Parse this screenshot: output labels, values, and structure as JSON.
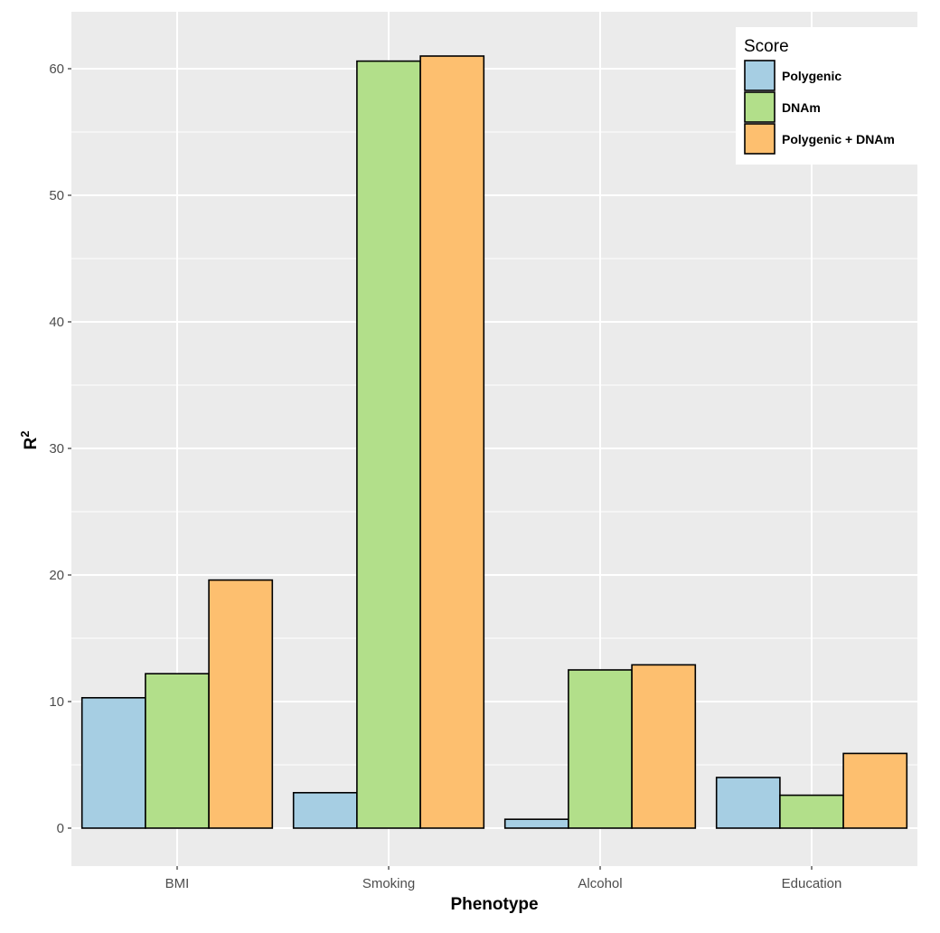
{
  "chart_data": {
    "type": "bar",
    "title": "",
    "xlabel": "Phenotype",
    "ylabel": "R",
    "ylabel_superscript": "2",
    "categories": [
      "BMI",
      "Smoking",
      "Alcohol",
      "Education"
    ],
    "series": [
      {
        "name": "Polygenic",
        "color": "#a6cee3",
        "values": [
          10.3,
          2.8,
          0.7,
          4.0
        ]
      },
      {
        "name": "DNAm",
        "color": "#b2df8a",
        "values": [
          12.2,
          60.6,
          12.5,
          2.6
        ]
      },
      {
        "name": "Polygenic + DNAm",
        "color": "#fdbf6f",
        "values": [
          19.6,
          61.0,
          12.9,
          5.9
        ]
      }
    ],
    "ylim": [
      -3,
      64.5
    ],
    "y_ticks": [
      0,
      10,
      20,
      30,
      40,
      50,
      60
    ],
    "grid": true,
    "legend": {
      "title": "Score",
      "position": "top-right"
    }
  }
}
